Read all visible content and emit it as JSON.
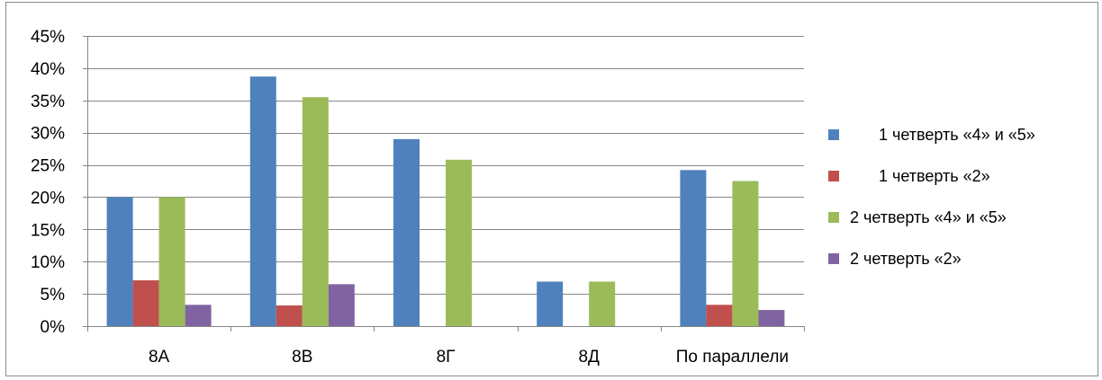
{
  "chart_data": {
    "type": "bar",
    "categories": [
      "8А",
      "8В",
      "8Г",
      "8Д",
      "По параллели"
    ],
    "series": [
      {
        "name": "1 четверть «4» и «5»",
        "color": "#4F81BD",
        "values": [
          20.0,
          38.7,
          29.0,
          6.9,
          24.2
        ]
      },
      {
        "name": "1 четверть «2»",
        "color": "#C0504D",
        "values": [
          7.1,
          3.2,
          null,
          null,
          3.3
        ]
      },
      {
        "name": "2 четверть «4» и «5»",
        "color": "#9BBB59",
        "values": [
          20.0,
          35.5,
          25.8,
          6.9,
          22.5
        ]
      },
      {
        "name": "2 четверть «2»",
        "color": "#8064A2",
        "values": [
          3.3,
          6.5,
          null,
          null,
          2.5
        ]
      }
    ],
    "yticks": [
      "0%",
      "5%",
      "10%",
      "15%",
      "20%",
      "25%",
      "30%",
      "35%",
      "40%",
      "45%"
    ],
    "ylim": [
      0,
      45
    ],
    "unit": "%",
    "grid": true,
    "legend_position": "right"
  }
}
